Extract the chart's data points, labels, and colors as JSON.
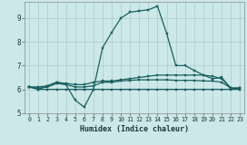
{
  "xlabel": "Humidex (Indice chaleur)",
  "bg_color": "#cce8e8",
  "grid_color": "#aacccc",
  "line_color": "#1a6060",
  "xlim": [
    -0.5,
    23.5
  ],
  "ylim": [
    5.0,
    9.7
  ],
  "yticks": [
    5,
    6,
    7,
    8,
    9
  ],
  "xticks": [
    0,
    1,
    2,
    3,
    4,
    5,
    6,
    7,
    8,
    9,
    10,
    11,
    12,
    13,
    14,
    15,
    16,
    17,
    18,
    19,
    20,
    21,
    22,
    23
  ],
  "lines": [
    {
      "x": [
        0,
        1,
        2,
        3,
        4,
        5,
        6,
        7,
        8,
        9,
        10,
        11,
        12,
        13,
        14,
        15,
        16,
        17,
        18,
        19,
        20,
        21,
        22,
        23
      ],
      "y": [
        6.1,
        6.0,
        6.15,
        6.3,
        6.2,
        5.55,
        5.25,
        6.0,
        7.75,
        8.4,
        9.0,
        9.25,
        9.3,
        9.35,
        9.5,
        8.35,
        7.0,
        7.0,
        6.8,
        6.6,
        6.45,
        6.5,
        6.05,
        6.05
      ]
    },
    {
      "x": [
        0,
        1,
        2,
        3,
        4,
        5,
        6,
        7,
        8,
        9,
        10,
        11,
        12,
        13,
        14,
        15,
        16,
        17,
        18,
        19,
        20,
        21,
        22,
        23
      ],
      "y": [
        6.1,
        6.1,
        6.15,
        6.3,
        6.25,
        6.2,
        6.2,
        6.3,
        6.35,
        6.35,
        6.4,
        6.45,
        6.5,
        6.55,
        6.6,
        6.6,
        6.6,
        6.6,
        6.6,
        6.6,
        6.55,
        6.45,
        6.05,
        6.05
      ]
    },
    {
      "x": [
        0,
        1,
        2,
        3,
        4,
        5,
        6,
        7,
        8,
        9,
        10,
        11,
        12,
        13,
        14,
        15,
        16,
        17,
        18,
        19,
        20,
        21,
        22,
        23
      ],
      "y": [
        6.1,
        6.05,
        6.1,
        6.25,
        6.2,
        6.1,
        6.1,
        6.15,
        6.3,
        6.3,
        6.35,
        6.38,
        6.4,
        6.4,
        6.4,
        6.4,
        6.38,
        6.38,
        6.38,
        6.35,
        6.35,
        6.3,
        6.05,
        6.05
      ]
    },
    {
      "x": [
        0,
        1,
        2,
        3,
        4,
        5,
        6,
        7,
        8,
        9,
        10,
        11,
        12,
        13,
        14,
        15,
        16,
        17,
        18,
        19,
        20,
        21,
        22,
        23
      ],
      "y": [
        6.1,
        6.0,
        6.0,
        6.0,
        6.0,
        6.0,
        6.0,
        6.0,
        6.0,
        6.0,
        6.0,
        6.0,
        6.0,
        6.0,
        6.0,
        6.0,
        6.0,
        6.0,
        6.0,
        6.0,
        6.0,
        6.0,
        6.0,
        6.0
      ]
    }
  ]
}
